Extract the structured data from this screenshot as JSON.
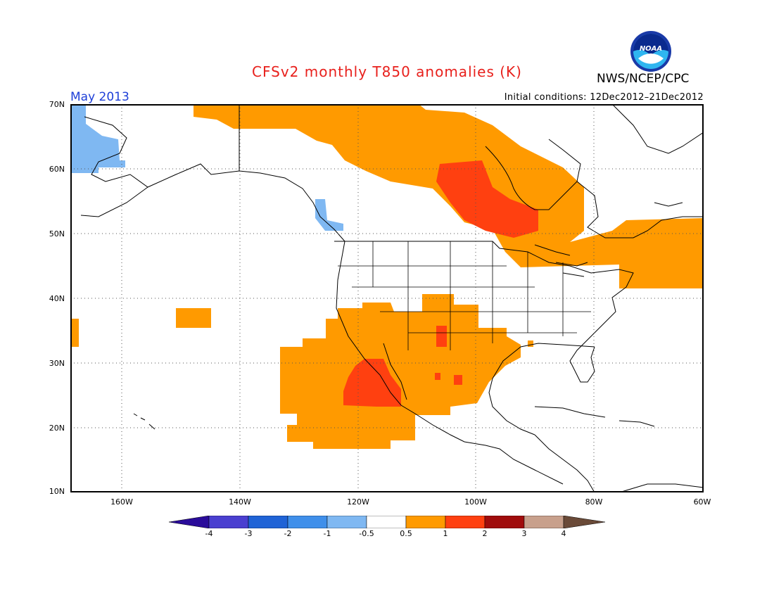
{
  "header": {
    "title": "CFSv2 monthly T850 anomalies (K)",
    "month": "May 2013",
    "initial_conditions": "Initial conditions: 12Dec2012–21Dec2012",
    "agency": "NWS/NCEP/CPC",
    "logo_text": "NOAA"
  },
  "map": {
    "lon_range": [
      -172,
      -60
    ],
    "lat_range": [
      10,
      70
    ],
    "lon_ticks": [
      "160W",
      "140W",
      "120W",
      "100W",
      "80W",
      "60W"
    ],
    "lat_ticks": [
      "70N",
      "60N",
      "50N",
      "40N",
      "30N",
      "20N",
      "10N"
    ],
    "grid": "dotted"
  },
  "colorbar": {
    "labels": [
      "-4",
      "-3",
      "-2",
      "-1",
      "-0.5",
      "0.5",
      "1",
      "2",
      "3",
      "4"
    ],
    "colors": [
      "#2a0c9a",
      "#4a3fd0",
      "#1f63d6",
      "#3f8fea",
      "#7fb8f2",
      "#ffffff",
      "#ff9a00",
      "#ff4010",
      "#a00c0c",
      "#c8a08c",
      "#6a4a38"
    ]
  },
  "anomaly_colors": {
    "warm_05_1": "#ff9a00",
    "warm_1_2": "#ff4010",
    "cool_m1_m05": "#7fb8f2"
  }
}
